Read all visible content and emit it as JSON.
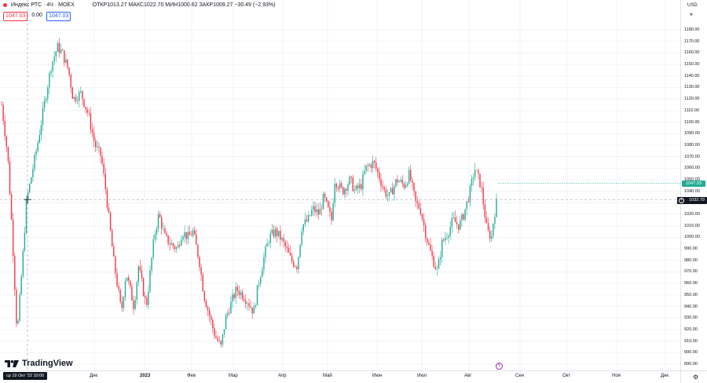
{
  "header": {
    "symbol_title": "Индекс РТС · 4Ч · MOEX",
    "ohlc_label": "ОТКР1013.27  МАКС1022.70  МИН1000.62  ЗАКР1009.27  −30.49 (−2.93%)",
    "currency": "USD",
    "badge_sell": "1047.03",
    "badge_spread": "0.00",
    "badge_buy": "1047.03"
  },
  "colors": {
    "up": "#22ab94",
    "down": "#f23645",
    "grid": "#f0f3fa",
    "crosshair": "#9598a1"
  },
  "price_axis": {
    "labels": [
      "1180.00",
      "1170.00",
      "1160.00",
      "1150.00",
      "1140.00",
      "1130.00",
      "1120.00",
      "1110.00",
      "1100.00",
      "1090.00",
      "1080.00",
      "1070.00",
      "1060.00",
      "1050.00",
      "1040.00",
      "1030.00",
      "1020.00",
      "1010.00",
      "1000.00",
      "990.00",
      "980.00",
      "970.00",
      "960.00",
      "950.00",
      "940.00",
      "930.00",
      "920.00",
      "910.00",
      "900.00",
      "890.00"
    ],
    "current_price": "1047.03",
    "crosshair_price": "1032.79"
  },
  "time_axis": {
    "labels": [
      "Дек",
      "2023",
      "Фев",
      "Мар",
      "Апр",
      "Май",
      "Июн",
      "Июл",
      "Авг",
      "Сен",
      "Окт",
      "Ноя",
      "Дек"
    ],
    "crosshair_time": "ср 19 Окт '22  10:00"
  },
  "branding": {
    "logo_text": "TradingView"
  },
  "icons": {
    "settings": "gear-icon",
    "event": "lightning-icon"
  },
  "chart_data": {
    "type": "candlestick",
    "title": "Индекс РТС · 4Ч · MOEX",
    "ylim": [
      885,
      1190
    ],
    "close_path": [
      [
        "2022-10-03",
        1115
      ],
      [
        "2022-10-07",
        1070
      ],
      [
        "2022-10-10",
        1000
      ],
      [
        "2022-10-13",
        915
      ],
      [
        "2022-10-17",
        990
      ],
      [
        "2022-10-19",
        1032
      ],
      [
        "2022-10-21",
        1045
      ],
      [
        "2022-10-26",
        1080
      ],
      [
        "2022-10-31",
        1120
      ],
      [
        "2022-11-04",
        1150
      ],
      [
        "2022-11-08",
        1165
      ],
      [
        "2022-11-11",
        1160
      ],
      [
        "2022-11-15",
        1145
      ],
      [
        "2022-11-18",
        1120
      ],
      [
        "2022-11-23",
        1125
      ],
      [
        "2022-11-28",
        1105
      ],
      [
        "2022-12-02",
        1080
      ],
      [
        "2022-12-06",
        1070
      ],
      [
        "2022-12-09",
        1040
      ],
      [
        "2022-12-14",
        980
      ],
      [
        "2022-12-19",
        935
      ],
      [
        "2022-12-22",
        970
      ],
      [
        "2022-12-27",
        940
      ],
      [
        "2022-12-30",
        975
      ],
      [
        "2023-01-04",
        940
      ],
      [
        "2023-01-09",
        1000
      ],
      [
        "2023-01-12",
        1020
      ],
      [
        "2023-01-16",
        1000
      ],
      [
        "2023-01-19",
        995
      ],
      [
        "2023-01-24",
        990
      ],
      [
        "2023-01-27",
        1005
      ],
      [
        "2023-01-31",
        1000
      ],
      [
        "2023-02-03",
        1005
      ],
      [
        "2023-02-07",
        980
      ],
      [
        "2023-02-10",
        950
      ],
      [
        "2023-02-14",
        930
      ],
      [
        "2023-02-17",
        915
      ],
      [
        "2023-02-21",
        905
      ],
      [
        "2023-02-24",
        930
      ],
      [
        "2023-02-28",
        945
      ],
      [
        "2023-03-03",
        955
      ],
      [
        "2023-03-07",
        950
      ],
      [
        "2023-03-10",
        945
      ],
      [
        "2023-03-14",
        935
      ],
      [
        "2023-03-17",
        960
      ],
      [
        "2023-03-21",
        985
      ],
      [
        "2023-03-24",
        1000
      ],
      [
        "2023-03-28",
        1005
      ],
      [
        "2023-03-31",
        1000
      ],
      [
        "2023-04-04",
        990
      ],
      [
        "2023-04-07",
        980
      ],
      [
        "2023-04-11",
        975
      ],
      [
        "2023-04-14",
        1010
      ],
      [
        "2023-04-18",
        1015
      ],
      [
        "2023-04-21",
        1025
      ],
      [
        "2023-04-25",
        1020
      ],
      [
        "2023-04-28",
        1035
      ],
      [
        "2023-05-03",
        1015
      ],
      [
        "2023-05-05",
        1050
      ],
      [
        "2023-05-10",
        1040
      ],
      [
        "2023-05-15",
        1050
      ],
      [
        "2023-05-18",
        1040
      ],
      [
        "2023-05-22",
        1045
      ],
      [
        "2023-05-25",
        1060
      ],
      [
        "2023-05-30",
        1065
      ],
      [
        "2023-06-02",
        1055
      ],
      [
        "2023-06-06",
        1040
      ],
      [
        "2023-06-09",
        1035
      ],
      [
        "2023-06-14",
        1050
      ],
      [
        "2023-06-19",
        1045
      ],
      [
        "2023-06-22",
        1055
      ],
      [
        "2023-06-26",
        1030
      ],
      [
        "2023-06-29",
        1025
      ],
      [
        "2023-07-03",
        1000
      ],
      [
        "2023-07-06",
        985
      ],
      [
        "2023-07-10",
        970
      ],
      [
        "2023-07-13",
        995
      ],
      [
        "2023-07-17",
        1005
      ],
      [
        "2023-07-20",
        1015
      ],
      [
        "2023-07-24",
        1010
      ],
      [
        "2023-07-27",
        1020
      ],
      [
        "2023-07-31",
        1040
      ],
      [
        "2023-08-03",
        1060
      ],
      [
        "2023-08-07",
        1045
      ],
      [
        "2023-08-09",
        1025
      ],
      [
        "2023-08-11",
        1005
      ],
      [
        "2023-08-14",
        1000
      ],
      [
        "2023-08-15",
        1015
      ],
      [
        "2023-08-17",
        1030
      ],
      [
        "2023-08-18",
        1047
      ]
    ]
  }
}
